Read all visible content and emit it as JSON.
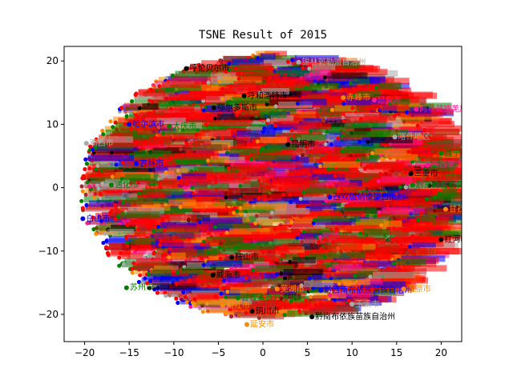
{
  "chart_data": {
    "type": "scatter",
    "title": "TSNE Result of 2015",
    "xlabel": "",
    "ylabel": "",
    "xlim": [
      -22.3,
      22.3
    ],
    "ylim": [
      -24.3,
      22.3
    ],
    "xticks": [
      -20,
      -15,
      -10,
      -5,
      0,
      5,
      10,
      15,
      20
    ],
    "yticks": [
      -20,
      -10,
      0,
      10,
      20
    ],
    "grid": false,
    "legend": "none",
    "palette": [
      "#ff0000",
      "#008000",
      "#0000ff",
      "#ff8c00",
      "#a9a9a9",
      "#000000",
      "#a52a2a",
      "#ff1493"
    ],
    "points": [
      {
        "x": -8.6,
        "y": 18.8,
        "label": "呼伦贝尔市",
        "color": "#000000"
      },
      {
        "x": 4.0,
        "y": 19.8,
        "label": "锡林郭勒盟自治州",
        "color": "#a9a9a9"
      },
      {
        "x": 0.8,
        "y": 17.4,
        "label": "包头市",
        "color": "#ff0000"
      },
      {
        "x": 9.0,
        "y": 14.2,
        "label": "赤峰市",
        "color": "#ff8c00"
      },
      {
        "x": 12.5,
        "y": 13.8,
        "label": "延安市",
        "color": "#ff1493"
      },
      {
        "x": 17.2,
        "y": 12.4,
        "label": "阿坝藏族羌族自治州",
        "color": "#ff1493"
      },
      {
        "x": -5.5,
        "y": 12.6,
        "label": "鄂尔多斯市",
        "color": "#000000"
      },
      {
        "x": -2.1,
        "y": 14.5,
        "label": "呼和浩特市",
        "color": "#000000"
      },
      {
        "x": -15.0,
        "y": 10.0,
        "label": "哈尔滨市",
        "color": "#0000ff"
      },
      {
        "x": -10.5,
        "y": 9.7,
        "label": "大庆市",
        "color": "#008000"
      },
      {
        "x": 6.8,
        "y": 10.6,
        "label": "西安市",
        "color": "#a52a2a"
      },
      {
        "x": 14.8,
        "y": 8.0,
        "label": "喀什地区",
        "color": "#a9a9a9"
      },
      {
        "x": -19.8,
        "y": 7.0,
        "label": "鸡西市",
        "color": "#a9a9a9"
      },
      {
        "x": -14.2,
        "y": 7.2,
        "label": "七台河市",
        "color": "#ff0000"
      },
      {
        "x": 2.8,
        "y": 6.8,
        "label": "昆明市",
        "color": "#000000"
      },
      {
        "x": -14.2,
        "y": 3.8,
        "label": "吉林市",
        "color": "#0000ff"
      },
      {
        "x": 20.0,
        "y": 5.4,
        "label": "西宁市",
        "color": "#008000"
      },
      {
        "x": 18.5,
        "y": 3.6,
        "label": "海西蒙古族藏族自治州",
        "color": "#ff1493"
      },
      {
        "x": 16.6,
        "y": 2.2,
        "label": "三亚市",
        "color": "#000000"
      },
      {
        "x": -20.2,
        "y": -4.9,
        "label": "白山市",
        "color": "#0000ff"
      },
      {
        "x": -17.0,
        "y": 0.4,
        "label": "通化市",
        "color": "#008000"
      },
      {
        "x": 16.8,
        "y": 0.4,
        "label": "黔东南苗族侗族自治州",
        "color": "#008000"
      },
      {
        "x": 7.5,
        "y": -1.5,
        "label": "西双版纳傣族自治州",
        "color": "#0000ff"
      },
      {
        "x": 20.5,
        "y": -3.4,
        "label": "甘孜藏族自治州",
        "color": "#ff8c00"
      },
      {
        "x": 20.0,
        "y": -8.2,
        "label": "红河哈尼族彝族自治州",
        "color": "#000000"
      },
      {
        "x": 16.2,
        "y": -10.3,
        "label": "儋州市",
        "color": "#a52a2a"
      },
      {
        "x": -3.5,
        "y": -11.0,
        "label": "鞍山市",
        "color": "#000000"
      },
      {
        "x": -5.6,
        "y": -13.8,
        "label": "威海市",
        "color": "#000000"
      },
      {
        "x": -15.3,
        "y": -15.8,
        "label": "苏州市",
        "color": "#008000"
      },
      {
        "x": 1.6,
        "y": -16.0,
        "label": "芜湖市",
        "color": "#ff8c00"
      },
      {
        "x": 6.5,
        "y": -16.2,
        "label": "黔西南布依族苗族自治州",
        "color": "#0000ff"
      },
      {
        "x": 15.8,
        "y": -16.0,
        "label": "固原市",
        "color": "#ff8c00"
      },
      {
        "x": -2.8,
        "y": -17.4,
        "label": "甘孜藏族自治州",
        "color": "#008000"
      },
      {
        "x": -4.5,
        "y": -18.6,
        "label": "丽江市",
        "color": "#ff8c00"
      },
      {
        "x": -1.2,
        "y": -19.5,
        "label": "铜川市",
        "color": "#000000"
      },
      {
        "x": 10.0,
        "y": -18.4,
        "label": "玉溪市",
        "color": "#a9a9a9"
      },
      {
        "x": 5.5,
        "y": -20.4,
        "label": "黔南布依族苗族自治州",
        "color": "#000000"
      },
      {
        "x": -1.8,
        "y": -21.6,
        "label": "延安市",
        "color": "#ff8c00"
      }
    ]
  }
}
